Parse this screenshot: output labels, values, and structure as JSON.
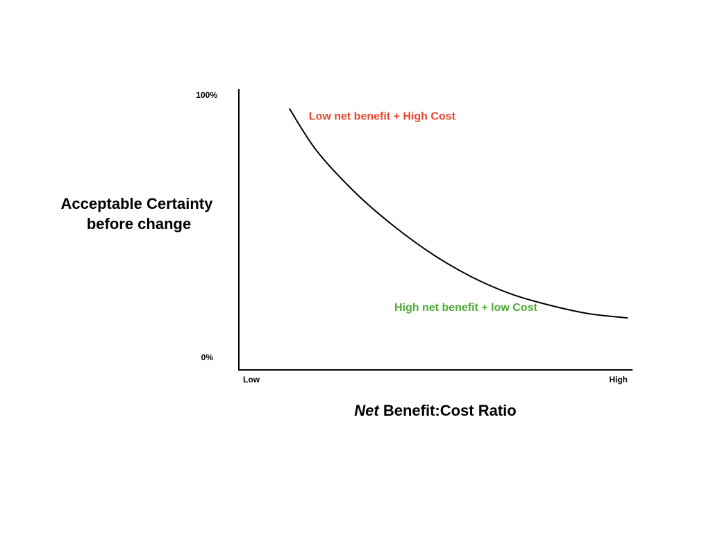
{
  "chart_data": {
    "type": "line",
    "title": "",
    "xlabel_emphasis": "Net",
    "xlabel_rest": "Benefit:Cost Ratio",
    "ylabel_lines": [
      "Acceptable Certainty",
      "before change"
    ],
    "x_ticks": [
      "Low",
      "High"
    ],
    "y_ticks": [
      "100%",
      "0%"
    ],
    "xlim": [
      0,
      1
    ],
    "ylim": [
      0,
      100
    ],
    "grid": false,
    "legend": "none",
    "series": [
      {
        "x": [
          0.13,
          0.2,
          0.3,
          0.4,
          0.5,
          0.6,
          0.7,
          0.8,
          0.9,
          1.0
        ],
        "y": [
          93,
          78,
          63,
          51,
          41,
          33,
          27,
          23,
          20,
          18.5
        ],
        "color": "#000000"
      }
    ],
    "annotations": [
      {
        "text": "Low net benefit + High Cost",
        "x": 0.18,
        "y": 89,
        "color": "#e8442c"
      },
      {
        "text": "High net benefit + low Cost",
        "x": 0.4,
        "y": 21,
        "color": "#4caa35"
      }
    ]
  }
}
